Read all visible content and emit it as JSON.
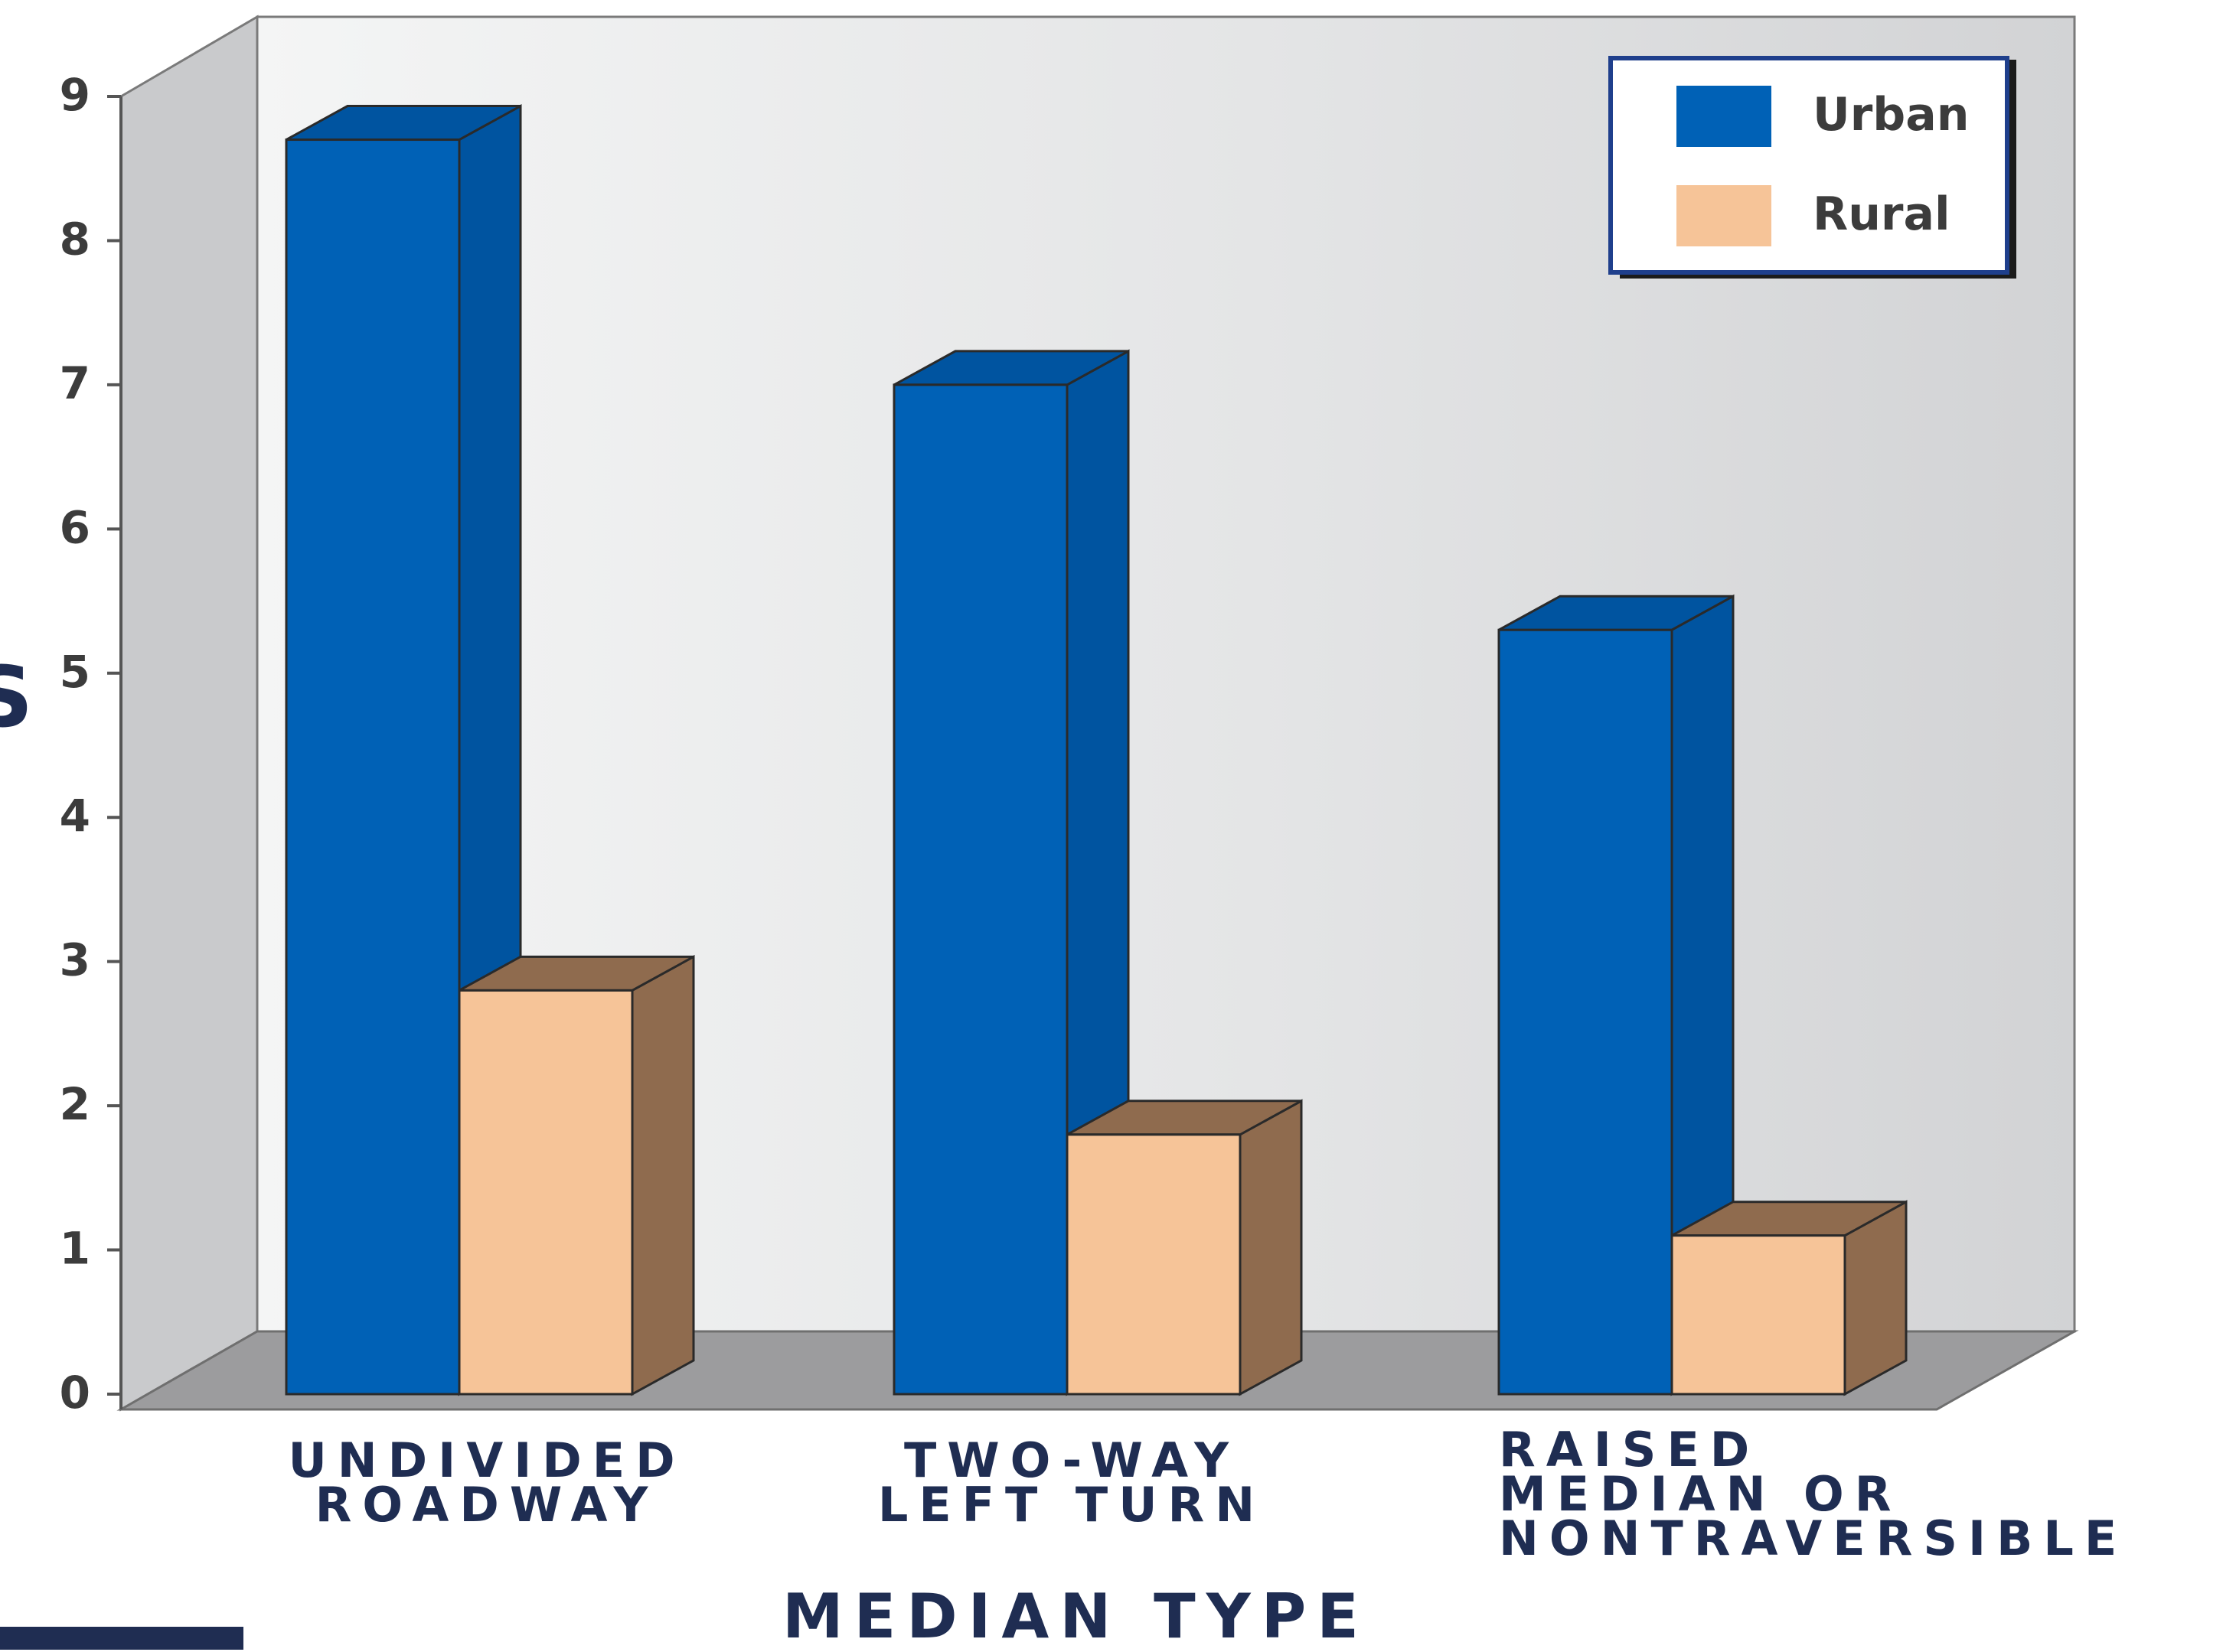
{
  "chart_data": {
    "type": "bar",
    "categories": [
      "UNDIVIDED\nROADWAY",
      "TWO-WAY\nLEFT TURN",
      "RAISED\nMEDIAN OR\nNONTRAVERSIBLE"
    ],
    "series": [
      {
        "name": "Urban",
        "values": [
          8.7,
          7.0,
          5.3
        ],
        "color": "#0061b6",
        "side_color": "#0054a0"
      },
      {
        "name": "Rural",
        "values": [
          2.8,
          1.8,
          1.1
        ],
        "color": "#f6c498",
        "side_color": "#8f6b4e"
      }
    ],
    "title": "",
    "xlabel": "MEDIAN TYPE",
    "ylabel_visible_fragment": "S",
    "ylim": [
      0,
      9
    ],
    "yticks": [
      "0",
      "1",
      "2",
      "3",
      "4",
      "5",
      "6",
      "7",
      "8",
      "9"
    ],
    "grid": false,
    "legend_position": "top-right",
    "style": "3d"
  }
}
